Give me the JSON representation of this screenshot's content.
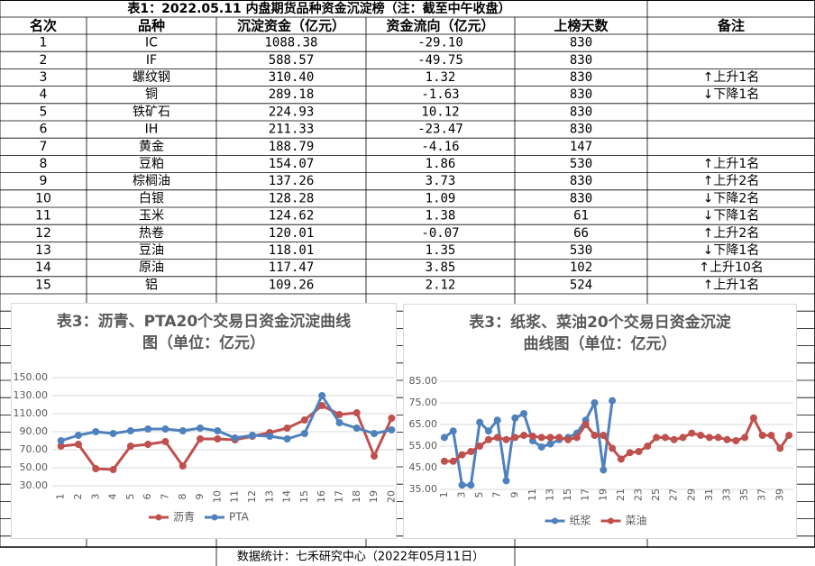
{
  "table": {
    "title": "表1：2022.05.11 内盘期货品种资金沉淀榜（注：截至中午收盘）",
    "headers": [
      "名次",
      "品种",
      "沉淀资金（亿元）",
      "资金流向（亿元）",
      "上榜天数",
      "备注"
    ],
    "rows": [
      [
        "1",
        "IC",
        "1088.38",
        "-29.10",
        "830",
        null
      ],
      [
        "2",
        "IF",
        "588.57",
        "-49.75",
        "830",
        null
      ],
      [
        "3",
        "螺纹钢",
        "310.40",
        "1.32",
        "830",
        "↑上升1名"
      ],
      [
        "4",
        "铜",
        "289.18",
        "-1.63",
        "830",
        "↓下降1名"
      ],
      [
        "5",
        "铁矿石",
        "224.93",
        "10.12",
        "830",
        null
      ],
      [
        "6",
        "IH",
        "211.33",
        "-23.47",
        "830",
        null
      ],
      [
        "7",
        "黄金",
        "188.79",
        "-4.16",
        "147",
        null
      ],
      [
        "8",
        "豆粕",
        "154.07",
        "1.86",
        "530",
        "↑上升1名"
      ],
      [
        "9",
        "棕榈油",
        "137.26",
        "3.73",
        "830",
        "↑上升2名"
      ],
      [
        "10",
        "白银",
        "128.28",
        "1.09",
        "830",
        "↓下降2名"
      ],
      [
        "11",
        "玉米",
        "124.62",
        "1.38",
        "61",
        "↓下降1名"
      ],
      [
        "12",
        "热卷",
        "120.01",
        "-0.07",
        "66",
        "↑上升2名"
      ],
      [
        "13",
        "豆油",
        "118.01",
        "1.35",
        "530",
        "↓下降1名"
      ],
      [
        "14",
        "原油",
        "117.47",
        "3.85",
        "102",
        "↑上升10名"
      ],
      [
        "15",
        "铝",
        "109.26",
        "2.12",
        "524",
        "↑上升1名"
      ]
    ]
  },
  "chart_data": [
    {
      "type": "line",
      "title": "表3：沥青、PTA20个交易日资金沉淀曲线图（单位：亿元）",
      "categories": [
        1,
        2,
        3,
        4,
        5,
        6,
        7,
        8,
        9,
        10,
        11,
        12,
        13,
        14,
        15,
        16,
        17,
        18,
        19,
        20
      ],
      "series": [
        {
          "name": "沥青",
          "color": "#c0504d",
          "values": [
            74,
            76,
            49,
            48,
            74,
            76,
            79,
            52,
            82,
            82,
            81,
            85,
            89,
            94,
            103,
            119,
            109,
            111,
            63,
            105
          ]
        },
        {
          "name": "PTA",
          "color": "#4f81bd",
          "values": [
            80,
            86,
            90,
            88,
            91,
            93,
            93,
            91,
            94,
            91,
            83,
            86,
            85,
            82,
            88,
            130,
            100,
            94,
            88,
            92
          ]
        }
      ],
      "ylim": [
        30,
        150
      ],
      "yticks": [
        {
          "value": 30,
          "label": "30.00"
        },
        {
          "value": 50,
          "label": "50.00"
        },
        {
          "value": 70,
          "label": "70.00"
        },
        {
          "value": 90,
          "label": "90.00"
        },
        {
          "value": 110,
          "label": "110.00"
        },
        {
          "value": 130,
          "label": "130.00"
        },
        {
          "value": 150,
          "label": "150.00"
        }
      ],
      "grid": true,
      "legend": "bottom"
    },
    {
      "type": "line",
      "title": "表3：纸浆、菜油20个交易日资金沉淀曲线图（单位：亿元）",
      "categories": [
        1,
        null,
        3,
        null,
        5,
        null,
        7,
        null,
        9,
        null,
        11,
        null,
        13,
        null,
        15,
        null,
        17,
        null,
        19,
        null,
        21,
        null,
        23,
        null,
        25,
        null,
        27,
        null,
        29,
        null,
        31,
        null,
        33,
        null,
        35,
        null,
        37,
        null,
        39,
        null
      ],
      "series": [
        {
          "name": "纸浆",
          "color": "#4f81bd",
          "values": [
            59,
            62,
            37,
            37,
            66,
            62,
            67,
            39,
            68,
            70,
            57.5,
            54.6,
            56,
            58,
            59,
            61,
            67,
            75,
            44,
            76,
            null,
            null,
            null,
            null,
            null,
            null,
            null,
            null,
            null,
            null,
            null,
            null,
            null,
            null,
            null,
            null,
            null,
            null,
            null,
            null
          ]
        },
        {
          "name": "菜油",
          "color": "#c0504d",
          "values": [
            48,
            48,
            51,
            52.5,
            55,
            58,
            59,
            58,
            59,
            60,
            59.6,
            59,
            59,
            59,
            58,
            59,
            65,
            60,
            60,
            54,
            49,
            52,
            52.5,
            55,
            59,
            59,
            58,
            59,
            61,
            60,
            59,
            59,
            58,
            57.5,
            59,
            68,
            60,
            60,
            54,
            60
          ]
        }
      ],
      "ylim": [
        35,
        85
      ],
      "yticks": [
        {
          "value": 35,
          "label": "35.00"
        },
        {
          "value": 45,
          "label": "45.00"
        },
        {
          "value": 55,
          "label": "55.00"
        },
        {
          "value": 65,
          "label": "65.00"
        },
        {
          "value": 75,
          "label": "75.00"
        },
        {
          "value": 85,
          "label": "85.00"
        }
      ],
      "grid": true,
      "legend": "bottom"
    }
  ],
  "footer": "数据统计：七禾研究中心（2022年05月11日）"
}
